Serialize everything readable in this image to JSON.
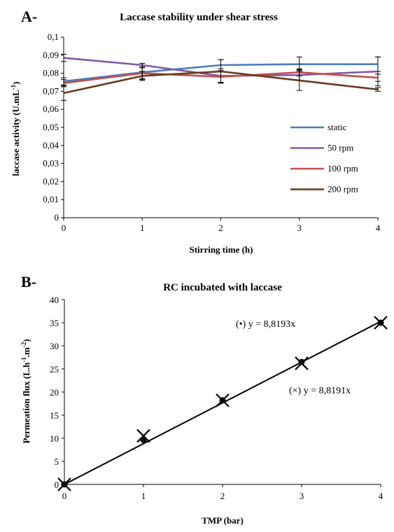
{
  "chart_data": [
    {
      "panel": "A-",
      "type": "line",
      "title": "Laccase stability under shear stress",
      "xlabel": "Stirring time (h)",
      "ylabel": "laccase activity (U.mL-1)",
      "ylabel_main": "laccase activity (U.mL",
      "ylabel_sup": "-1",
      "ylabel_end": ")",
      "x": [
        0,
        1,
        2,
        3,
        4
      ],
      "xlim": [
        0,
        4
      ],
      "ylim": [
        0,
        0.1
      ],
      "x_ticks": [
        "0",
        "1",
        "2",
        "3",
        "4"
      ],
      "y_ticks": [
        "0",
        "0,01",
        "0,02",
        "0,03",
        "0,04",
        "0,05",
        "0,06",
        "0,07",
        "0,08",
        "0,09",
        "0,1"
      ],
      "grid": false,
      "legend_position": "right-middle",
      "series": [
        {
          "name": "static",
          "color": "#4a7ebb",
          "values": [
            0.0755,
            0.0805,
            0.0845,
            0.085,
            0.085
          ],
          "error": [
            0.002,
            0.004,
            0.003,
            0.004,
            0.004
          ]
        },
        {
          "name": "50 rpm",
          "color": "#7f5ba6",
          "values": [
            0.0885,
            0.0845,
            0.0785,
            0.079,
            0.081
          ],
          "error": [
            0.002,
            0.001,
            0.004,
            0.003,
            0.008
          ]
        },
        {
          "name": "100 rpm",
          "color": "#c0504d",
          "values": [
            0.0745,
            0.08,
            0.078,
            0.0805,
            0.0775
          ],
          "error": [
            0.002,
            0.003,
            0.003,
            0.002,
            0.002
          ]
        },
        {
          "name": "200 rpm",
          "color": "#6b3a1c",
          "values": [
            0.069,
            0.0785,
            0.081,
            0.076,
            0.071
          ],
          "error": [
            0.004,
            0.0025,
            0.0065,
            0.0055,
            0.001
          ]
        }
      ]
    },
    {
      "panel": "B-",
      "type": "scatter",
      "title": "RC incubated with laccase",
      "xlabel": "TMP (bar)",
      "ylabel": "Permeation flux (L.h-1.m-2)",
      "ylabel_main": "Permeation flux (L.h",
      "ylabel_sup1": "-1",
      "ylabel_mid": ".m",
      "ylabel_sup2": "-2",
      "ylabel_end": ")",
      "x": [
        0,
        1,
        2,
        3,
        4
      ],
      "xlim": [
        0,
        4
      ],
      "ylim": [
        0,
        40
      ],
      "x_ticks": [
        "0",
        "1",
        "2",
        "3",
        "4"
      ],
      "y_ticks": [
        "0",
        "5",
        "10",
        "15",
        "20",
        "25",
        "30",
        "35",
        "40"
      ],
      "grid": false,
      "series": [
        {
          "marker": "dot",
          "values": [
            0,
            9.6,
            18.2,
            26.5,
            35.0
          ]
        },
        {
          "marker": "cross",
          "values": [
            0,
            10.5,
            18.2,
            26.2,
            35.0
          ]
        }
      ],
      "trendline": {
        "slope": 8.8193
      },
      "equations": [
        {
          "symbol": "(•)",
          "text": "y = 8,8193x"
        },
        {
          "symbol": "(×)",
          "text": "y = 8,8191x"
        }
      ]
    }
  ]
}
